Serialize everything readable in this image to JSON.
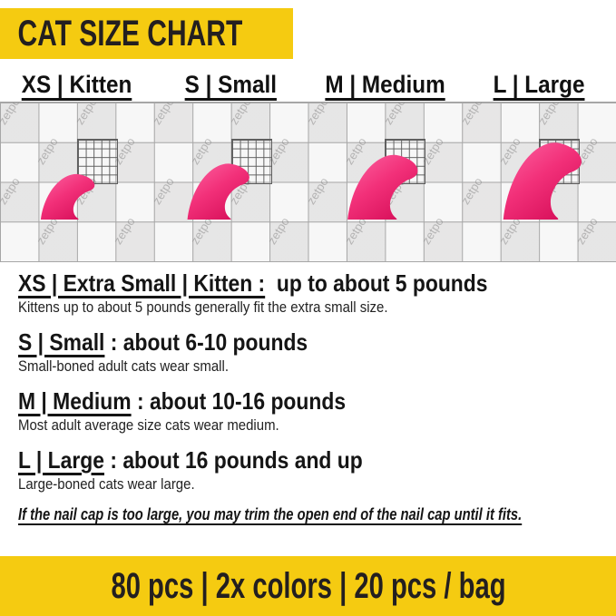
{
  "colors": {
    "banner_yellow": "#F5CB11",
    "cap_pink": "#F23079",
    "cap_pink_light": "#FB5D9C",
    "cap_pink_dark": "#D60E58",
    "grid_background": "#EFEEEE",
    "grid_line": "#A6A6A6"
  },
  "top_banner": {
    "title": "CAT SIZE CHART"
  },
  "size_labels": [
    "XS | Kitten",
    "S | Small",
    "M | Medium",
    "L | Large"
  ],
  "grid": {
    "watermark": "zetpo"
  },
  "sections": [
    {
      "heading_underlined": "XS | Extra Small | Kitten :",
      "heading_rest": "  up to about 5 pounds",
      "description": "Kittens up to about 5 pounds generally fit the extra small size."
    },
    {
      "heading_underlined": "S | Small",
      "heading_rest": " : about 6-10 pounds",
      "description": "Small-boned adult cats wear small."
    },
    {
      "heading_underlined": "M | Medium",
      "heading_rest": " : about 10-16 pounds",
      "description": "Most adult average size cats wear medium."
    },
    {
      "heading_underlined": "L | Large",
      "heading_rest": " : about 16 pounds and up",
      "description": "Large-boned cats wear large."
    }
  ],
  "note": "If the nail cap is too large, you may trim the open end of the nail cap until it fits.",
  "bottom_banner": {
    "text": "80 pcs | 2x colors | 20 pcs / bag"
  }
}
